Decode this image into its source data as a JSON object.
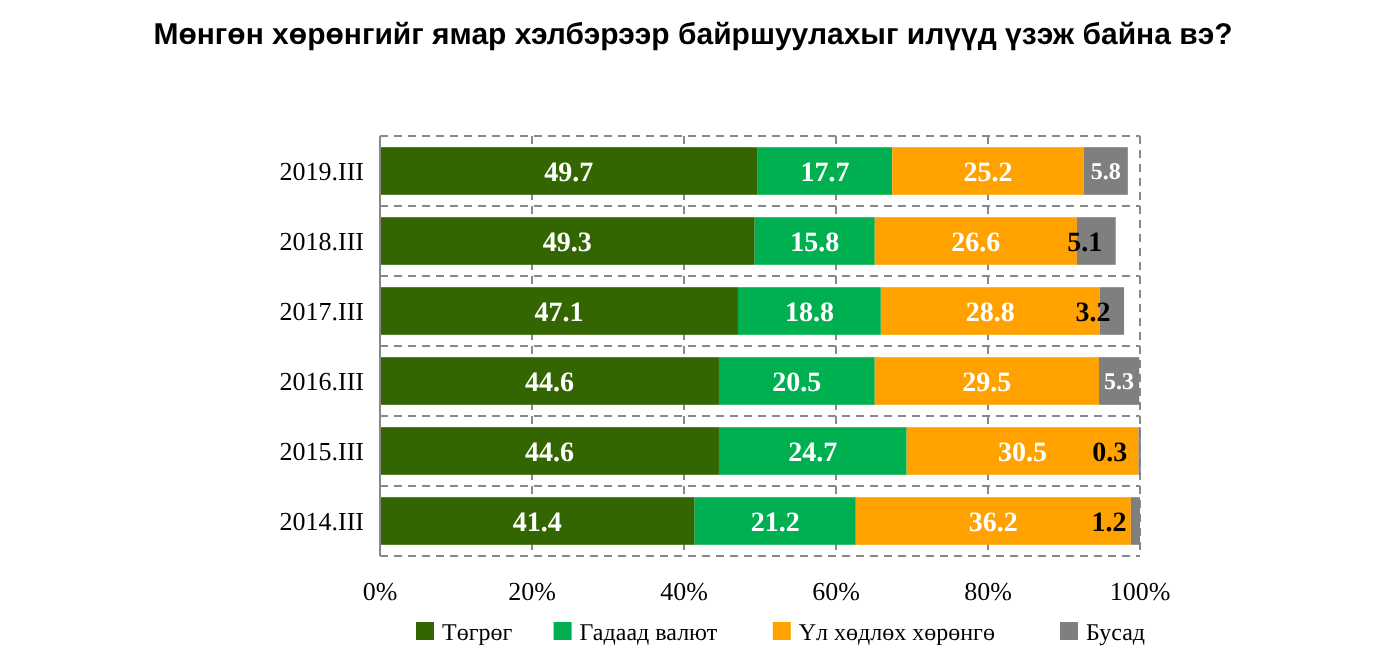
{
  "chart_data": {
    "type": "bar",
    "orientation": "horizontal",
    "stacked": true,
    "title": "Мөнгөн хөрөнгийг ямар хэлбэрээр байршуулахыг илүүд үзэж байна вэ?",
    "categories": [
      "2019.III",
      "2018.III",
      "2017.III",
      "2016.III",
      "2015.III",
      "2014.III"
    ],
    "series": [
      {
        "name": "Төгрөг",
        "color": "#336600",
        "values": [
          49.7,
          49.3,
          47.1,
          44.6,
          44.6,
          41.4
        ]
      },
      {
        "name": "Гадаад валют",
        "color": "#00b050",
        "values": [
          17.7,
          15.8,
          18.8,
          20.5,
          24.7,
          21.2
        ]
      },
      {
        "name": "Үл хөдлөх хөрөнгө",
        "color": "#ffa200",
        "values": [
          25.2,
          26.6,
          28.8,
          29.5,
          30.5,
          36.2
        ]
      },
      {
        "name": "Бусад",
        "color": "#7f7f7f",
        "values": [
          5.8,
          5.1,
          3.2,
          5.3,
          0.3,
          1.2
        ]
      }
    ],
    "xlim": [
      0,
      100
    ],
    "xticks": [
      {
        "value": 0,
        "label": "0%"
      },
      {
        "value": 20,
        "label": "20%"
      },
      {
        "value": 40,
        "label": "40%"
      },
      {
        "value": 60,
        "label": "60%"
      },
      {
        "value": 80,
        "label": "80%"
      },
      {
        "value": 100,
        "label": "100%"
      }
    ],
    "grid": "x",
    "data_labels": true,
    "legend": "bottom"
  }
}
